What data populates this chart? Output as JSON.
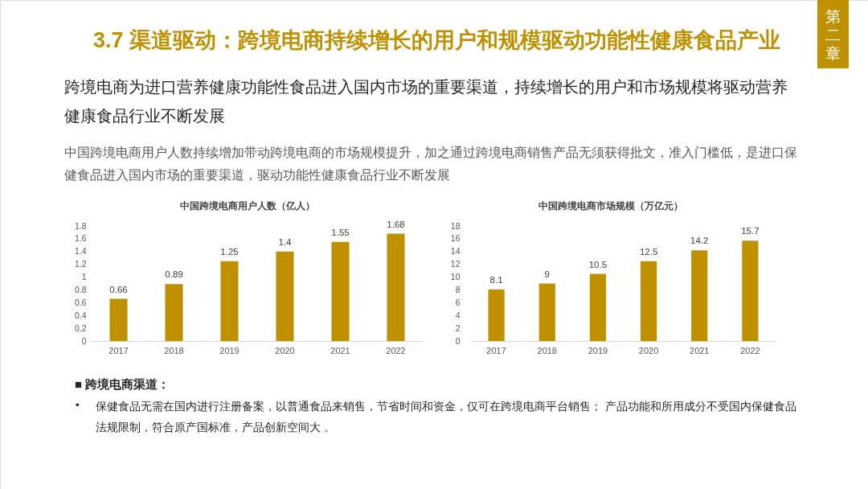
{
  "chart_data": [
    {
      "type": "other",
      "title": "3.7 渠道驱动：跨境电商持续增长的用户和规模驱动功能性健康食品产业",
      "subtitle": "跨境电商为进口营养健康功能性食品进入国内市场的重要渠道，持续增长的用户和市场规模将驱动营养健康食品行业不断发展",
      "annotations": [
        "第二章",
        "中国跨境电商用户人数持续增加带动跨境电商的市场规模提升，加之通过跨境电商销售产品无须获得批文，准入门槛低，是进口保健食品进入国内市场的重要渠道，驱动功能性健康食品行业不断发展"
      ]
    },
    {
      "type": "bar",
      "title": "中国跨境电商用户人数（亿人）",
      "categories": [
        "2017",
        "2018",
        "2019",
        "2020",
        "2021",
        "2022"
      ],
      "values": [
        0.66,
        0.89,
        1.25,
        1.4,
        1.55,
        1.68
      ],
      "color": "#bf9000",
      "ylim": [
        0,
        1.8
      ],
      "yticks": [
        0,
        0.2,
        0.4,
        0.6,
        0.8,
        1,
        1.2,
        1.4,
        1.6,
        1.8
      ],
      "data_labels": true
    },
    {
      "type": "bar",
      "title": "中国跨境电商市场规模（万亿元）",
      "categories": [
        "2017",
        "2018",
        "2019",
        "2020",
        "2021",
        "2022"
      ],
      "values": [
        8.1,
        9,
        10.5,
        12.5,
        14.2,
        15.7
      ],
      "color": "#bf9000",
      "ylim": [
        0,
        18
      ],
      "yticks": [
        0,
        2,
        4,
        6,
        8,
        10,
        12,
        14,
        16,
        18
      ],
      "data_labels": true
    },
    {
      "type": "other",
      "title": "■ 跨境电商渠道：",
      "annotations": [
        "• 保健食品无需在国内进行注册备案，以普通食品来销售，节省时间和资金，仅可在跨境电商平台销售； 产品功能和所用成分不受国内保健食品法规限制，符合原产国标准，产品创新空间大 。"
      ]
    }
  ]
}
